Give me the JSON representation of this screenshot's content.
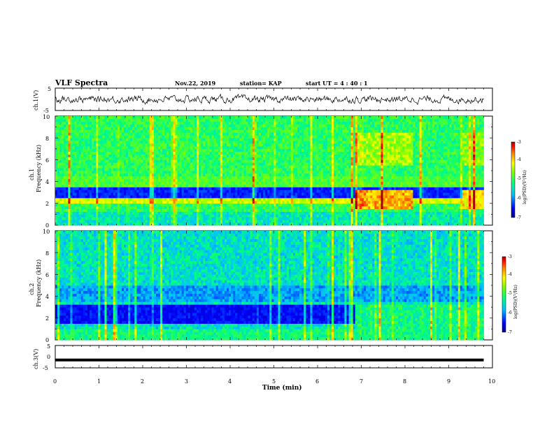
{
  "header": {
    "title": "VLF Spectra",
    "date": "Nov.22, 2019",
    "station": "station= KAP",
    "start": "start  UT =   4 : 40 : 1"
  },
  "chart_data": [
    {
      "type": "line",
      "panel": "ch1-waveform",
      "ylabel": "ch.1(V)",
      "ylim": [
        -5,
        5
      ],
      "xlim": [
        0,
        10
      ],
      "yticks": [
        "5",
        "-5"
      ],
      "series": [
        {
          "values": "noise-like waveform centered near 0 V, amplitude about ±3 V"
        }
      ]
    },
    {
      "type": "heatmap",
      "panel": "ch1-spectrogram",
      "ylabel": "ch.1",
      "ylabel2": "Frequency (kHz)",
      "ylim": [
        0,
        10
      ],
      "xlim": [
        0,
        9.8
      ],
      "yticks": [
        "0",
        "2",
        "4",
        "6",
        "8",
        "10"
      ],
      "colorbar": {
        "label": "log(PSD)(V²/Hz)",
        "range": [
          -7,
          -3
        ],
        "ticks": [
          "-3",
          "-4",
          "-5",
          "-6",
          "-7"
        ]
      },
      "features": [
        {
          "t": [
            6.85,
            8.15
          ],
          "f": [
            1.5,
            3.3
          ],
          "level": -3.8,
          "desc": "red/orange enhancement band"
        },
        {
          "t": [
            6.85,
            8.15
          ],
          "f": [
            5.5,
            8.5
          ],
          "level": -4.5,
          "desc": "yellow/orange enhancement"
        },
        {
          "t": [
            9.3,
            9.8
          ],
          "f": [
            5.5,
            8.5
          ],
          "level": -4.6,
          "desc": "yellow enhancement"
        },
        {
          "t": [
            9.3,
            9.8
          ],
          "f": [
            1.5,
            3.3
          ],
          "level": -4.0,
          "desc": "orange enhancement"
        }
      ]
    },
    {
      "type": "heatmap",
      "panel": "ch2-spectrogram",
      "ylabel": "ch.2",
      "ylabel2": "Frequency (kHz)",
      "ylim": [
        0,
        10
      ],
      "xlim": [
        0,
        9.8
      ],
      "yticks": [
        "0",
        "2",
        "4",
        "6",
        "8",
        "10"
      ],
      "colorbar": {
        "label": "log(PSD)(V²/Hz)",
        "range": [
          -7,
          -3
        ],
        "ticks": [
          "-3",
          "-4",
          "-5",
          "-6",
          "-7"
        ]
      },
      "features": [
        {
          "t": [
            6.85,
            9.8
          ],
          "f": [
            1.0,
            3.3
          ],
          "level": -5.2,
          "desc": "green band replacing dark blue"
        }
      ]
    },
    {
      "type": "line",
      "panel": "ch3-waveform",
      "ylabel": "ch.3(V)",
      "ylim": [
        -5,
        5
      ],
      "xlim": [
        0,
        10
      ],
      "yticks": [
        "5",
        "0",
        "-5"
      ],
      "series": [
        {
          "values": "flat line at about -1.5 V"
        }
      ]
    }
  ],
  "xaxis": {
    "label": "Time (min)",
    "ticks": [
      "0",
      "1",
      "2",
      "3",
      "4",
      "5",
      "6",
      "7",
      "8",
      "9",
      "10"
    ]
  },
  "colormap": [
    "#000080",
    "#0000ff",
    "#00a0ff",
    "#00ffff",
    "#00ff80",
    "#80ff00",
    "#ffff00",
    "#ffa000",
    "#ff0000",
    "#800000"
  ]
}
